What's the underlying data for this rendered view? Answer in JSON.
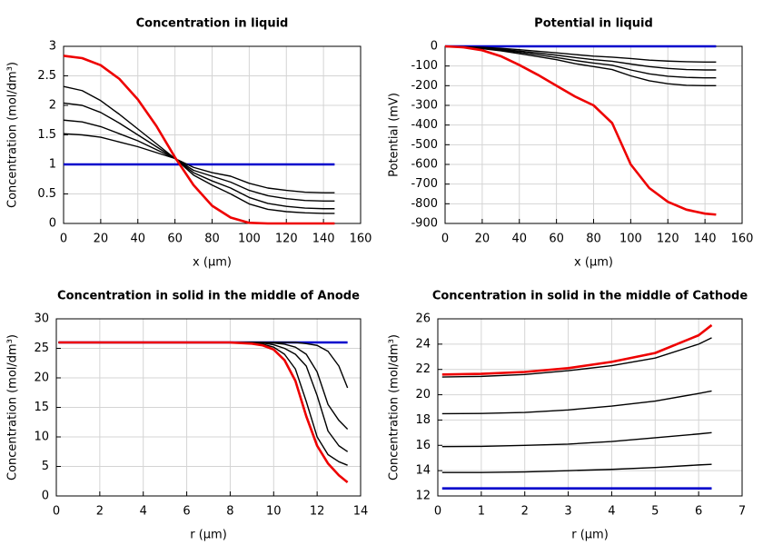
{
  "chart_data": [
    {
      "type": "line",
      "title": "Concentration in liquid",
      "xlabel": "x (µm)",
      "ylabel": "Concentration (mol/dm³)",
      "x": [
        0,
        10,
        20,
        30,
        40,
        50,
        60,
        70,
        80,
        90,
        100,
        110,
        120,
        130,
        140,
        146
      ],
      "xlim": [
        0,
        160
      ],
      "xticks": [
        0,
        20,
        40,
        60,
        80,
        100,
        120,
        140,
        160
      ],
      "ylim": [
        0,
        3
      ],
      "yticks": [
        0,
        0.5,
        1,
        1.5,
        2,
        2.5,
        3
      ],
      "grid": true,
      "series": [
        {
          "color": "#0000cc",
          "values": [
            1,
            1,
            1,
            1,
            1,
            1,
            1,
            1,
            1,
            1,
            1,
            1,
            1,
            1,
            1,
            1
          ]
        },
        {
          "color": "#000000",
          "values": [
            2.32,
            2.25,
            2.08,
            1.85,
            1.6,
            1.35,
            1.1,
            0.82,
            0.65,
            0.5,
            0.33,
            0.24,
            0.2,
            0.18,
            0.17,
            0.17
          ]
        },
        {
          "color": "#000000",
          "values": [
            2.04,
            2.0,
            1.88,
            1.7,
            1.5,
            1.3,
            1.1,
            0.86,
            0.72,
            0.6,
            0.44,
            0.34,
            0.29,
            0.26,
            0.25,
            0.25
          ]
        },
        {
          "color": "#000000",
          "values": [
            1.75,
            1.72,
            1.64,
            1.52,
            1.4,
            1.25,
            1.1,
            0.9,
            0.8,
            0.7,
            0.56,
            0.47,
            0.42,
            0.39,
            0.38,
            0.38
          ]
        },
        {
          "color": "#000000",
          "values": [
            1.52,
            1.5,
            1.46,
            1.38,
            1.3,
            1.2,
            1.1,
            0.95,
            0.86,
            0.8,
            0.68,
            0.6,
            0.56,
            0.53,
            0.52,
            0.52
          ]
        },
        {
          "color": "#ee0000",
          "values": [
            2.84,
            2.8,
            2.68,
            2.45,
            2.1,
            1.65,
            1.12,
            0.65,
            0.3,
            0.1,
            0.01,
            0,
            0,
            0,
            0,
            0
          ]
        }
      ]
    },
    {
      "type": "line",
      "title": "Potential in liquid",
      "xlabel": "x (µm)",
      "ylabel": "Potential (mV)",
      "x": [
        0,
        10,
        20,
        30,
        40,
        50,
        60,
        70,
        80,
        90,
        100,
        110,
        120,
        130,
        140,
        146
      ],
      "xlim": [
        0,
        160
      ],
      "xticks": [
        0,
        20,
        40,
        60,
        80,
        100,
        120,
        140,
        160
      ],
      "ylim": [
        -900,
        0
      ],
      "yticks": [
        -900,
        -800,
        -700,
        -600,
        -500,
        -400,
        -300,
        -200,
        -100,
        0
      ],
      "grid": true,
      "series": [
        {
          "color": "#0000cc",
          "values": [
            0,
            0,
            0,
            0,
            0,
            0,
            0,
            0,
            0,
            0,
            0,
            0,
            0,
            0,
            0,
            0
          ]
        },
        {
          "color": "#000000",
          "values": [
            0,
            -2,
            -5,
            -10,
            -17,
            -25,
            -33,
            -42,
            -50,
            -55,
            -62,
            -70,
            -75,
            -78,
            -80,
            -80
          ]
        },
        {
          "color": "#000000",
          "values": [
            0,
            -3,
            -8,
            -15,
            -24,
            -34,
            -45,
            -57,
            -68,
            -76,
            -90,
            -103,
            -112,
            -118,
            -120,
            -120
          ]
        },
        {
          "color": "#000000",
          "values": [
            0,
            -4,
            -10,
            -19,
            -30,
            -43,
            -57,
            -72,
            -85,
            -96,
            -120,
            -140,
            -152,
            -158,
            -160,
            -160
          ]
        },
        {
          "color": "#000000",
          "values": [
            0,
            -5,
            -12,
            -23,
            -37,
            -52,
            -68,
            -88,
            -103,
            -118,
            -150,
            -175,
            -190,
            -198,
            -200,
            -200
          ]
        },
        {
          "color": "#ee0000",
          "values": [
            0,
            -5,
            -20,
            -50,
            -95,
            -145,
            -200,
            -255,
            -300,
            -390,
            -600,
            -720,
            -790,
            -830,
            -850,
            -855
          ]
        }
      ]
    },
    {
      "type": "line",
      "title": "Concentration in solid in the middle of Anode",
      "xlabel": "r (µm)",
      "ylabel": "Concentration (mol/dm³)",
      "x": [
        0.1,
        2,
        4,
        6,
        8,
        9,
        9.5,
        10,
        10.5,
        11,
        11.5,
        12,
        12.5,
        13,
        13.4
      ],
      "xlim": [
        0,
        14
      ],
      "xticks": [
        0,
        2,
        4,
        6,
        8,
        10,
        12,
        14
      ],
      "ylim": [
        0,
        30
      ],
      "yticks": [
        0,
        5,
        10,
        15,
        20,
        25,
        30
      ],
      "grid": true,
      "series": [
        {
          "color": "#0000cc",
          "values": [
            26,
            26,
            26,
            26,
            26,
            26,
            26,
            26,
            26,
            26,
            26,
            26,
            26,
            26,
            26
          ]
        },
        {
          "color": "#000000",
          "values": [
            26,
            26,
            26,
            26,
            26,
            26,
            26,
            26,
            26,
            26,
            25.8,
            25.5,
            24.5,
            22,
            18.3
          ]
        },
        {
          "color": "#000000",
          "values": [
            26,
            26,
            26,
            26,
            26,
            26,
            26,
            25.9,
            25.7,
            25.2,
            24,
            21,
            15.5,
            12.8,
            11.3
          ]
        },
        {
          "color": "#000000",
          "values": [
            26,
            26,
            26,
            26,
            26,
            26,
            25.9,
            25.6,
            25,
            24,
            22,
            17,
            11,
            8.5,
            7.5
          ]
        },
        {
          "color": "#000000",
          "values": [
            26,
            26,
            26,
            26,
            26,
            25.9,
            25.7,
            25.2,
            24,
            21.5,
            16,
            10,
            7,
            5.8,
            5.2
          ]
        },
        {
          "color": "#ee0000",
          "values": [
            26,
            26,
            26,
            26,
            26,
            25.8,
            25.5,
            24.8,
            23,
            19.5,
            13.5,
            8.5,
            5.5,
            3.5,
            2.3
          ]
        }
      ]
    },
    {
      "type": "line",
      "title": "Concentration in solid in the middle of Cathode",
      "xlabel": "r (µm)",
      "ylabel": "Concentration (mol/dm³)",
      "x": [
        0.1,
        1,
        2,
        3,
        4,
        5,
        6,
        6.3
      ],
      "xlim": [
        0,
        7
      ],
      "xticks": [
        0,
        1,
        2,
        3,
        4,
        5,
        6,
        7
      ],
      "ylim": [
        12,
        26
      ],
      "yticks": [
        12,
        14,
        16,
        18,
        20,
        22,
        24,
        26
      ],
      "grid": true,
      "series": [
        {
          "color": "#0000cc",
          "values": [
            12.6,
            12.6,
            12.6,
            12.6,
            12.6,
            12.6,
            12.6,
            12.6
          ]
        },
        {
          "color": "#000000",
          "values": [
            13.85,
            13.85,
            13.9,
            14.0,
            14.1,
            14.25,
            14.45,
            14.5
          ]
        },
        {
          "color": "#000000",
          "values": [
            15.9,
            15.92,
            16.0,
            16.1,
            16.3,
            16.6,
            16.9,
            17.0
          ]
        },
        {
          "color": "#000000",
          "values": [
            18.5,
            18.52,
            18.6,
            18.8,
            19.1,
            19.5,
            20.1,
            20.3
          ]
        },
        {
          "color": "#000000",
          "values": [
            21.4,
            21.45,
            21.6,
            21.9,
            22.3,
            22.9,
            24,
            24.5
          ]
        },
        {
          "color": "#ee0000",
          "values": [
            21.6,
            21.65,
            21.8,
            22.1,
            22.6,
            23.3,
            24.7,
            25.5
          ]
        }
      ]
    }
  ]
}
